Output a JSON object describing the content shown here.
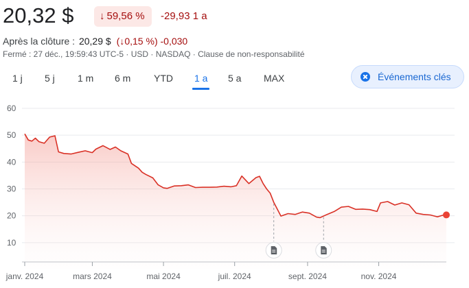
{
  "quote": {
    "price": "20,32 $",
    "change_pct": "59,56 %",
    "change_abs": "-29,93 1 a",
    "after_hours_label": "Après la clôture :",
    "after_hours_price": "20,29 $",
    "after_hours_pct": "0,15 %",
    "after_hours_abs": "-0,030",
    "closed_info": "Fermé : 27 déc., 19:59:43 UTC-5 · USD · NASDAQ · Clause de non-responsabilité"
  },
  "ranges": [
    "1 j",
    "5 j",
    "1 m",
    "6 m",
    "YTD",
    "1 a",
    "5 a",
    "MAX"
  ],
  "active_range": "1 a",
  "events_button": {
    "label": "Événements clés",
    "icon": "close-circle-icon"
  },
  "colors": {
    "down_red": "#a50e0e",
    "line_red": "#d93025",
    "accent_blue": "#1a73e8"
  },
  "chart_data": {
    "type": "area",
    "ylim": [
      0,
      60
    ],
    "y_ticks": [
      10,
      20,
      30,
      40,
      50,
      60
    ],
    "grid": true,
    "x_labels": [
      "janv. 2024",
      "mars 2024",
      "mai 2024",
      "juil. 2024",
      "sept. 2024",
      "nov. 2024"
    ],
    "x_label_positions": [
      0,
      1.9,
      3.9,
      5.9,
      7.95,
      9.95
    ],
    "x_range": [
      0,
      11.85
    ],
    "series": [
      {
        "x": [
          0,
          0.1,
          0.2,
          0.3,
          0.4,
          0.55,
          0.7,
          0.85,
          0.95,
          1.1,
          1.3,
          1.5,
          1.7,
          1.9,
          2.0,
          2.2,
          2.4,
          2.55,
          2.7,
          2.9,
          3.0,
          3.1,
          3.2,
          3.3,
          3.4,
          3.6,
          3.75,
          3.9,
          4.0,
          4.2,
          4.4,
          4.6,
          4.8,
          5.0,
          5.2,
          5.4,
          5.6,
          5.8,
          5.95,
          6.1,
          6.3,
          6.5,
          6.6,
          6.7,
          6.8,
          6.9,
          7.0,
          7.2,
          7.4,
          7.6,
          7.8,
          8.0,
          8.2,
          8.3,
          8.5,
          8.7,
          8.9,
          9.1,
          9.3,
          9.5,
          9.7,
          9.9,
          10.0,
          10.2,
          10.4,
          10.6,
          10.8,
          11.0,
          11.2,
          11.4,
          11.6,
          11.75,
          11.85
        ],
        "y": [
          50.5,
          48.2,
          47.8,
          48.9,
          47.6,
          47.0,
          49.3,
          49.8,
          43.8,
          43.2,
          43.0,
          43.6,
          44.2,
          43.5,
          44.8,
          46.1,
          44.7,
          45.6,
          44.2,
          43.0,
          39.5,
          38.6,
          37.7,
          36.2,
          35.4,
          34.1,
          31.5,
          30.4,
          30.2,
          31.1,
          31.2,
          31.5,
          30.5,
          30.6,
          30.6,
          30.7,
          31.0,
          30.8,
          31.2,
          34.8,
          32.0,
          34.2,
          34.7,
          32.0,
          30.0,
          28.4,
          25.0,
          19.9,
          20.8,
          20.5,
          21.4,
          21.0,
          19.5,
          19.3,
          20.5,
          21.6,
          23.2,
          23.5,
          22.4,
          22.5,
          22.3,
          21.6,
          24.8,
          25.3,
          24.0,
          24.8,
          24.1,
          21.0,
          20.5,
          20.3,
          19.6,
          20.2,
          20.32
        ]
      }
    ],
    "event_markers": [
      {
        "x": 7.0,
        "icon": "document-icon"
      },
      {
        "x": 8.4,
        "icon": "document-icon"
      }
    ]
  }
}
